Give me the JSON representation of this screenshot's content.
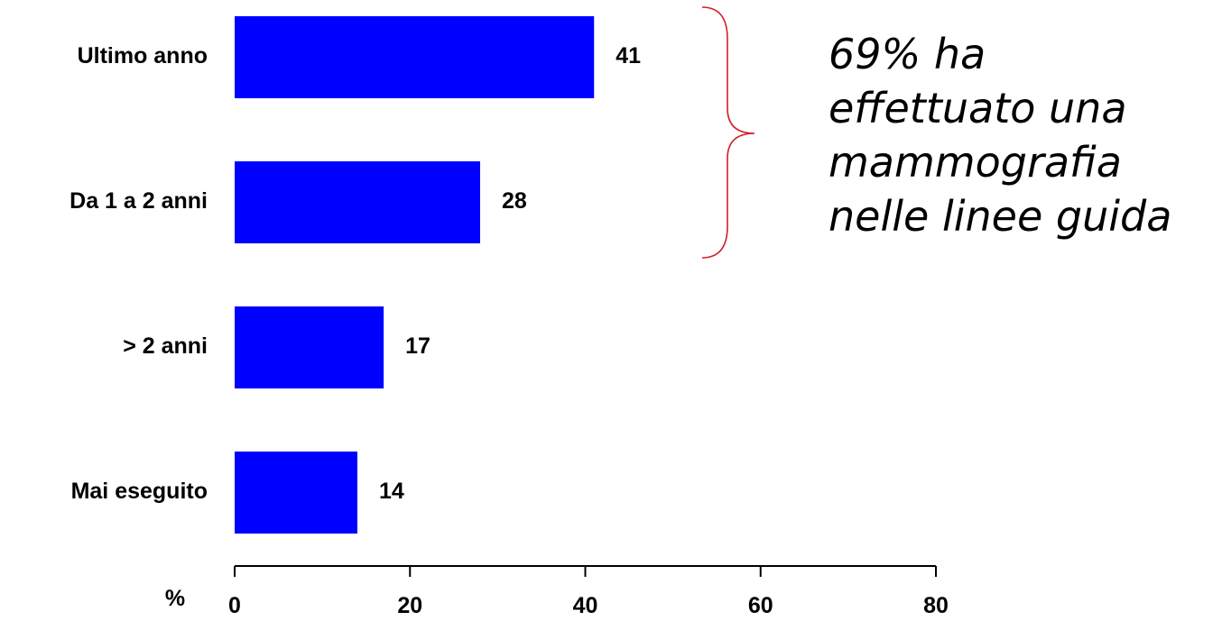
{
  "chart_data": {
    "type": "bar",
    "orientation": "horizontal",
    "categories": [
      "Ultimo anno",
      "Da 1 a 2 anni",
      "> 2 anni",
      "Mai eseguito"
    ],
    "values": [
      41,
      28,
      17,
      14
    ],
    "data_labels": [
      "41",
      "28",
      "17",
      "14"
    ],
    "xlabel": "%",
    "xlim": [
      0,
      80
    ],
    "xticks": [
      "0",
      "20",
      "40",
      "60",
      "80"
    ],
    "grid": false,
    "bar_color": "#0000FF",
    "annotation": {
      "lines": [
        "69% ha",
        "effettuato una",
        "mammografia",
        "nelle linee guida"
      ],
      "brace_color": "#D0202A",
      "applies_to": [
        "Ultimo anno",
        "Da 1 a 2 anni"
      ]
    }
  }
}
